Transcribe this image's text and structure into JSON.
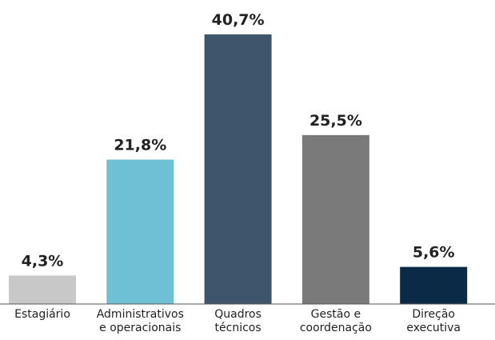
{
  "chart_data": {
    "type": "bar",
    "categories": [
      "Estagiário",
      "Administrativos e operacionais",
      "Quadros técnicos",
      "Gestão e coordenação",
      "Direção executiva"
    ],
    "values": [
      4.3,
      21.8,
      40.7,
      25.5,
      5.6
    ],
    "value_labels": [
      "4,3%",
      "21,8%",
      "40,7%",
      "25,5%",
      "5,6%"
    ],
    "colors": [
      "#c8c8c8",
      "#6fc0d4",
      "#3d566b",
      "#7a7a7a",
      "#0b2a45"
    ]
  }
}
